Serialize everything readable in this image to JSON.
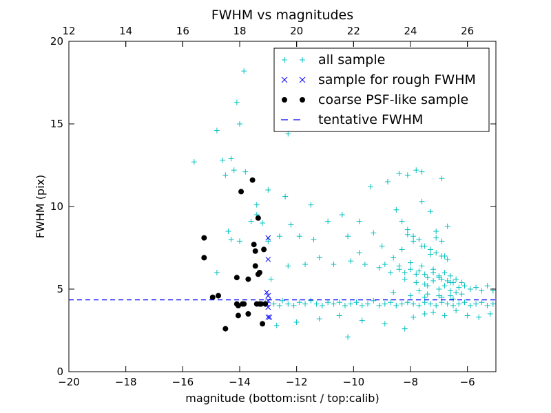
{
  "chart_data": {
    "type": "scatter",
    "title": "FWHM vs magnitudes",
    "xlabel": "magnitude (bottom:isnt / top:calib)",
    "ylabel": "FWHM (pix)",
    "xlim": [
      -20,
      -5
    ],
    "ylim": [
      0,
      20
    ],
    "x_ticks": [
      "−20",
      "−18",
      "−16",
      "−14",
      "−12",
      "−10",
      "−8",
      "−6"
    ],
    "x_tick_values": [
      -20,
      -18,
      -16,
      -14,
      -12,
      -10,
      -8,
      -6
    ],
    "y_ticks": [
      "0",
      "5",
      "10",
      "15",
      "20"
    ],
    "y_tick_values": [
      0,
      5,
      10,
      15,
      20
    ],
    "top_axis": {
      "ticks": [
        "12",
        "14",
        "16",
        "18",
        "20",
        "22",
        "24",
        "26"
      ],
      "tick_values": [
        12,
        14,
        16,
        18,
        20,
        22,
        24,
        26
      ],
      "lim": [
        12,
        27
      ]
    },
    "legend": {
      "position": "top-right",
      "entries": [
        "all sample",
        "sample for rough FWHM",
        "coarse PSF-like sample",
        "tentative FWHM"
      ]
    },
    "colors": {
      "all_sample": "#00bfbf",
      "rough": "#0000ff",
      "coarse": "#000000",
      "tentative": "#0000ff"
    },
    "series": [
      {
        "name": "all sample",
        "marker": "plus",
        "x": [
          -15.6,
          -14.8,
          -14.1,
          -14.0,
          -13.85,
          -13.8,
          -14.6,
          -14.2,
          -14.5,
          -14.3,
          -13.4,
          -13.0,
          -12.4,
          -12.3,
          -11.5,
          -10.4,
          -9.8,
          -9.4,
          -8.8,
          -8.4,
          -8.1,
          -7.8,
          -7.6,
          -6.9,
          -14.8,
          -14.4,
          -14.3,
          -14.0,
          -13.6,
          -13.4,
          -13.2,
          -13.0,
          -12.6,
          -12.2,
          -11.9,
          -11.4,
          -10.9,
          -10.2,
          -9.8,
          -9.3,
          -9.0,
          -8.9,
          -8.6,
          -8.3,
          -8.1,
          -7.9,
          -7.6,
          -7.3,
          -7.1,
          -6.8,
          -12.9,
          -12.3,
          -11.7,
          -11.2,
          -10.7,
          -10.1,
          -9.6,
          -9.1,
          -8.7,
          -8.4,
          -8.2,
          -8.0,
          -7.8,
          -7.7,
          -7.5,
          -7.4,
          -7.2,
          -7.0,
          -6.9,
          -6.7,
          -6.5,
          -6.3,
          -6.1,
          -5.9,
          -5.7,
          -5.5,
          -5.3,
          -5.1,
          -13.1,
          -12.8,
          -12.6,
          -12.5,
          -12.3,
          -12.1,
          -11.9,
          -11.7,
          -11.5,
          -11.3,
          -11.1,
          -10.9,
          -10.7,
          -10.5,
          -10.3,
          -10.1,
          -9.9,
          -9.7,
          -9.5,
          -9.3,
          -9.1,
          -8.9,
          -8.7,
          -8.5,
          -8.3,
          -8.1,
          -7.9,
          -7.7,
          -7.5,
          -7.3,
          -7.1,
          -6.9,
          -6.7,
          -6.5,
          -6.3,
          -6.1,
          -5.9,
          -5.7,
          -5.5,
          -5.3,
          -5.1,
          -12.7,
          -12.0,
          -11.2,
          -10.5,
          -10.2,
          -9.7,
          -8.9,
          -8.2,
          -7.9,
          -7.5,
          -7.2,
          -6.8,
          -6.4,
          -6.0,
          -5.6,
          -5.2,
          -8.5,
          -8.3,
          -8.1,
          -7.9,
          -7.7,
          -7.5,
          -7.3,
          -7.1,
          -6.9,
          -6.7,
          -8.4,
          -8.0,
          -7.6,
          -7.2,
          -6.8,
          -6.6,
          -6.4,
          -6.2,
          -8.2,
          -7.8,
          -7.4,
          -7.0,
          -6.6,
          -8.6,
          -8.0,
          -7.5,
          -7.0,
          -6.5,
          -7.6,
          -7.3,
          -7.1,
          -6.9,
          -6.7,
          -7.5,
          -7.2,
          -7.0,
          -6.8,
          -6.6,
          -6.4,
          -6.2,
          -7.7,
          -7.4,
          -6.9,
          -6.6
        ],
        "y": [
          12.7,
          14.6,
          16.3,
          15.0,
          18.2,
          12.1,
          12.8,
          12.2,
          11.9,
          12.9,
          9.5,
          11.0,
          10.6,
          14.4,
          10.1,
          9.5,
          9.1,
          11.2,
          11.5,
          12.0,
          11.9,
          12.2,
          12.1,
          11.7,
          6.0,
          8.5,
          8.0,
          7.9,
          9.1,
          10.1,
          9.0,
          7.9,
          8.2,
          8.9,
          8.2,
          8.0,
          9.1,
          8.2,
          7.2,
          8.4,
          7.6,
          6.5,
          6.9,
          7.4,
          8.3,
          7.9,
          7.6,
          7.1,
          8.1,
          7.0,
          5.6,
          6.4,
          6.5,
          6.9,
          6.5,
          6.7,
          6.5,
          6.3,
          6.0,
          6.4,
          6.0,
          6.2,
          5.9,
          6.1,
          5.9,
          5.7,
          6.0,
          5.8,
          5.6,
          5.5,
          5.4,
          5.1,
          5.2,
          5.0,
          5.1,
          4.9,
          5.2,
          4.9,
          4.2,
          4.1,
          4.0,
          4.3,
          4.1,
          4.0,
          4.2,
          4.1,
          4.3,
          4.1,
          4.0,
          4.2,
          4.1,
          4.2,
          4.0,
          4.1,
          4.2,
          4.0,
          4.1,
          4.3,
          4.0,
          4.1,
          4.2,
          4.0,
          4.1,
          4.2,
          4.1,
          4.0,
          4.2,
          4.1,
          4.0,
          4.2,
          4.1,
          4.0,
          4.1,
          4.2,
          4.0,
          4.1,
          4.2,
          4.0,
          4.1,
          2.8,
          3.0,
          3.2,
          3.4,
          2.1,
          3.1,
          2.9,
          2.6,
          3.3,
          3.5,
          3.6,
          3.4,
          3.7,
          3.4,
          3.3,
          3.5,
          9.8,
          9.1,
          8.6,
          8.2,
          8.0,
          7.6,
          7.4,
          7.2,
          7.0,
          6.8,
          6.2,
          6.6,
          6.4,
          6.2,
          6.0,
          5.8,
          5.6,
          5.4,
          5.6,
          5.4,
          5.2,
          5.0,
          4.9,
          4.8,
          4.6,
          4.5,
          4.6,
          4.4,
          10.3,
          9.7,
          8.5,
          7.9,
          8.8,
          5.3,
          5.5,
          5.7,
          5.2,
          5.4,
          4.8,
          4.7,
          4.9,
          4.7,
          4.5,
          4.6
        ]
      },
      {
        "name": "sample for rough FWHM",
        "marker": "x",
        "x": [
          -13.0,
          -13.0,
          -13.05,
          -13.0,
          -13.0,
          -13.05,
          -13.0,
          -13.0,
          -12.95
        ],
        "y": [
          8.1,
          6.8,
          4.8,
          4.6,
          4.3,
          4.1,
          3.9,
          3.3,
          3.3
        ]
      },
      {
        "name": "coarse PSF-like sample",
        "marker": "circle",
        "x": [
          -15.25,
          -15.25,
          -14.95,
          -14.75,
          -14.5,
          -14.1,
          -14.05,
          -14.1,
          -14.05,
          -13.95,
          -13.9,
          -13.85,
          -13.7,
          -13.7,
          -13.55,
          -13.5,
          -13.45,
          -13.45,
          -13.4,
          -13.35,
          -13.35,
          -13.3,
          -13.3,
          -13.25,
          -13.2,
          -13.15,
          -13.1
        ],
        "y": [
          8.1,
          6.9,
          4.5,
          4.6,
          2.6,
          5.7,
          4.0,
          4.1,
          3.4,
          10.9,
          4.1,
          4.1,
          5.6,
          3.5,
          11.6,
          7.7,
          7.3,
          6.4,
          4.1,
          9.3,
          5.9,
          6.0,
          4.1,
          4.1,
          2.9,
          7.4,
          4.1
        ]
      },
      {
        "name": "tentative FWHM",
        "type": "hline",
        "y": 4.35
      }
    ]
  }
}
